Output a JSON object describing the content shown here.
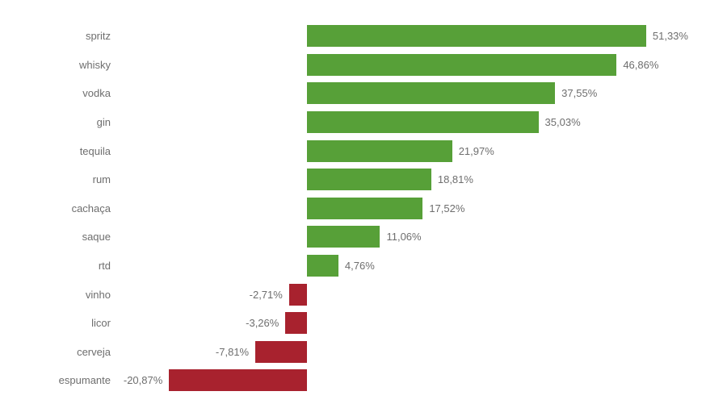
{
  "chart_data": {
    "type": "bar",
    "orientation": "horizontal",
    "title": "",
    "xlabel": "",
    "ylabel": "",
    "grid": false,
    "legend": null,
    "xlim": [
      -25,
      60
    ],
    "categories": [
      "spritz",
      "whisky",
      "vodka",
      "gin",
      "tequila",
      "rum",
      "cachaça",
      "saque",
      "rtd",
      "vinho",
      "licor",
      "cerveja",
      "espumante"
    ],
    "values": [
      51.33,
      46.86,
      37.55,
      35.03,
      21.97,
      18.81,
      17.52,
      11.06,
      4.76,
      -2.71,
      -3.26,
      -7.81,
      -20.87
    ],
    "value_labels": [
      "51,33%",
      "46,86%",
      "37,55%",
      "35,03%",
      "21,97%",
      "18,81%",
      "17,52%",
      "11,06%",
      "4,76%",
      "-2,71%",
      "-3,26%",
      "-7,81%",
      "-20,87%"
    ],
    "positive_color": "#57a038",
    "negative_color": "#a8222e",
    "text_color": "#6e6e6e",
    "background_color": "#ffffff"
  }
}
